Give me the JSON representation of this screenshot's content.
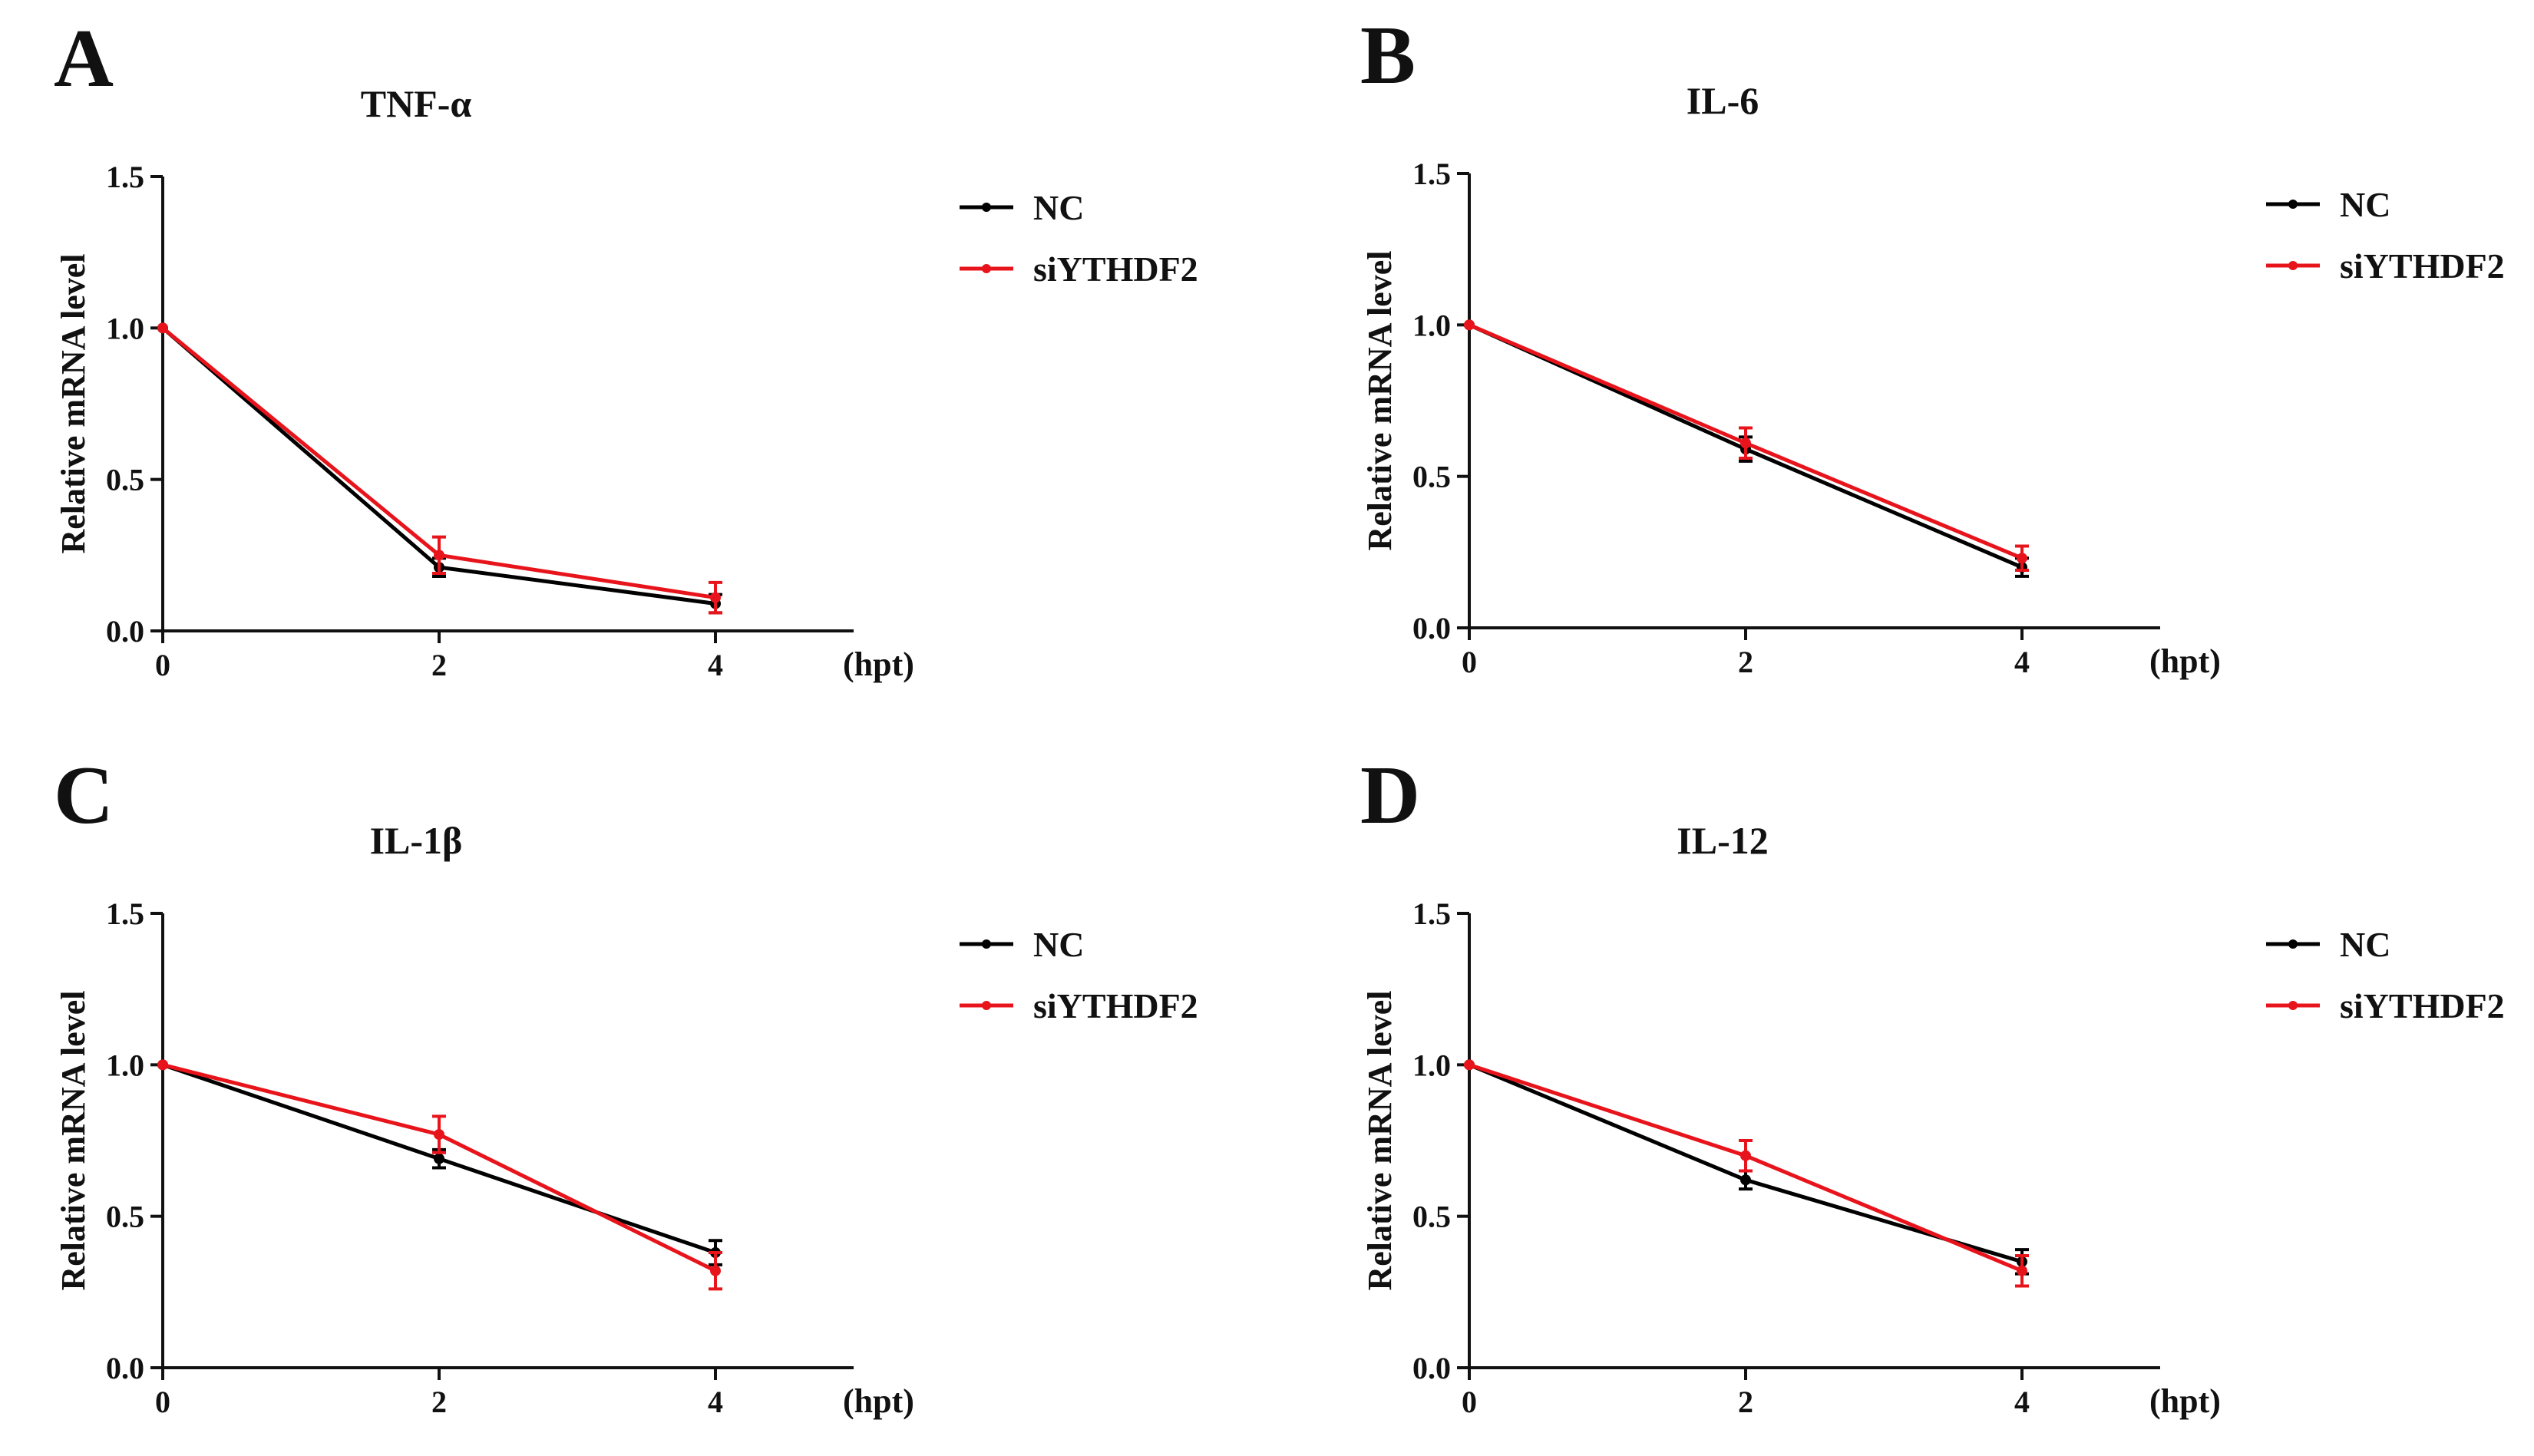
{
  "figure": {
    "colors": {
      "NC": "#000000",
      "siYTHDF2": "#e8141c",
      "axis": "#111111"
    }
  },
  "chart_data": [
    {
      "panel": "A",
      "type": "line",
      "title": "TNF-α",
      "xlabel": "(hpt)",
      "ylabel": "Relative mRNA level",
      "x": [
        0,
        2,
        4
      ],
      "x_tick_labels": [
        "0",
        "2",
        "4"
      ],
      "xlim": [
        0,
        5
      ],
      "ylim": [
        0,
        1.5
      ],
      "y_ticks": [
        0,
        0.5,
        1.0,
        1.5
      ],
      "y_tick_labels": [
        "0.0",
        "0.5",
        "1.0",
        "1.5"
      ],
      "legend": "right",
      "series": [
        {
          "name": "NC",
          "values": [
            1.0,
            0.21,
            0.09
          ],
          "error": [
            0,
            0.03,
            0.03
          ]
        },
        {
          "name": "siYTHDF2",
          "values": [
            1.0,
            0.25,
            0.11
          ],
          "error": [
            0,
            0.06,
            0.05
          ]
        }
      ]
    },
    {
      "panel": "B",
      "type": "line",
      "title": "IL-6",
      "xlabel": "(hpt)",
      "ylabel": "Relative mRNA level",
      "x": [
        0,
        2,
        4
      ],
      "x_tick_labels": [
        "0",
        "2",
        "4"
      ],
      "xlim": [
        0,
        5
      ],
      "ylim": [
        0,
        1.5
      ],
      "y_ticks": [
        0,
        0.5,
        1.0,
        1.5
      ],
      "y_tick_labels": [
        "0.0",
        "0.5",
        "1.0",
        "1.5"
      ],
      "legend": "right",
      "series": [
        {
          "name": "NC",
          "values": [
            1.0,
            0.59,
            0.2
          ],
          "error": [
            0,
            0.04,
            0.03
          ]
        },
        {
          "name": "siYTHDF2",
          "values": [
            1.0,
            0.61,
            0.23
          ],
          "error": [
            0,
            0.05,
            0.04
          ]
        }
      ]
    },
    {
      "panel": "C",
      "type": "line",
      "title": "IL-1β",
      "xlabel": "(hpt)",
      "ylabel": "Relative mRNA level",
      "x": [
        0,
        2,
        4
      ],
      "x_tick_labels": [
        "0",
        "2",
        "4"
      ],
      "xlim": [
        0,
        5
      ],
      "ylim": [
        0,
        1.5
      ],
      "y_ticks": [
        0,
        0.5,
        1.0,
        1.5
      ],
      "y_tick_labels": [
        "0.0",
        "0.5",
        "1.0",
        "1.5"
      ],
      "legend": "right",
      "series": [
        {
          "name": "NC",
          "values": [
            1.0,
            0.69,
            0.38
          ],
          "error": [
            0,
            0.03,
            0.04
          ]
        },
        {
          "name": "siYTHDF2",
          "values": [
            1.0,
            0.77,
            0.32
          ],
          "error": [
            0,
            0.06,
            0.06
          ]
        }
      ]
    },
    {
      "panel": "D",
      "type": "line",
      "title": "IL-12",
      "xlabel": "(hpt)",
      "ylabel": "Relative mRNA level",
      "x": [
        0,
        2,
        4
      ],
      "x_tick_labels": [
        "0",
        "2",
        "4"
      ],
      "xlim": [
        0,
        5
      ],
      "ylim": [
        0,
        1.5
      ],
      "y_ticks": [
        0,
        0.5,
        1.0,
        1.5
      ],
      "y_tick_labels": [
        "0.0",
        "0.5",
        "1.0",
        "1.5"
      ],
      "legend": "right",
      "series": [
        {
          "name": "NC",
          "values": [
            1.0,
            0.62,
            0.35
          ],
          "error": [
            0,
            0.03,
            0.04
          ]
        },
        {
          "name": "siYTHDF2",
          "values": [
            1.0,
            0.7,
            0.32
          ],
          "error": [
            0,
            0.05,
            0.05
          ]
        }
      ]
    }
  ]
}
